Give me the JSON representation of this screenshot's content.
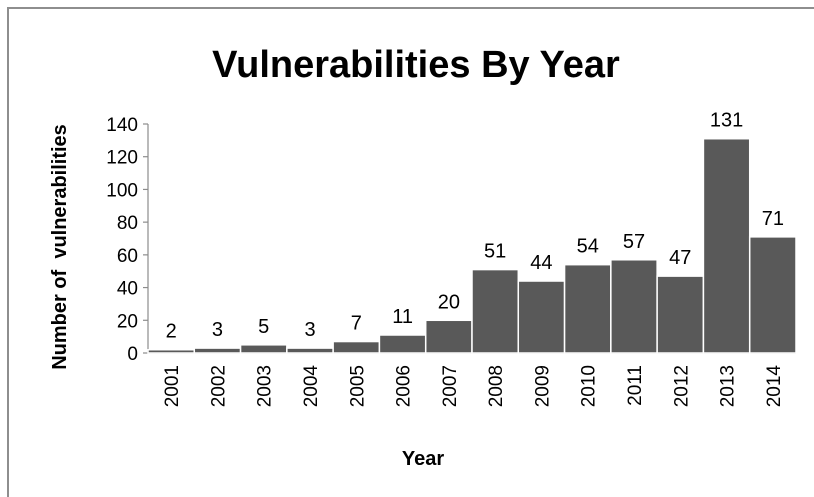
{
  "chart_data": {
    "type": "bar",
    "title": "Vulnerabilities By Year",
    "xlabel": "Year",
    "ylabel": "Number of  vulnerabilities",
    "categories": [
      "2001",
      "2002",
      "2003",
      "2004",
      "2005",
      "2006",
      "2007",
      "2008",
      "2009",
      "2010",
      "2011",
      "2012",
      "2013",
      "2014"
    ],
    "values": [
      2,
      3,
      5,
      3,
      7,
      11,
      20,
      51,
      44,
      54,
      57,
      47,
      131,
      71
    ],
    "ylim": [
      0,
      140
    ],
    "yticks": [
      0,
      20,
      40,
      60,
      80,
      100,
      120,
      140
    ],
    "data_labels": [
      "2",
      "3",
      "5",
      "3",
      "7",
      "11",
      "20",
      "51",
      "44",
      "54",
      "57",
      "47",
      "131",
      "71"
    ],
    "grid": false,
    "legend": "none",
    "bar_color": "#595959"
  }
}
